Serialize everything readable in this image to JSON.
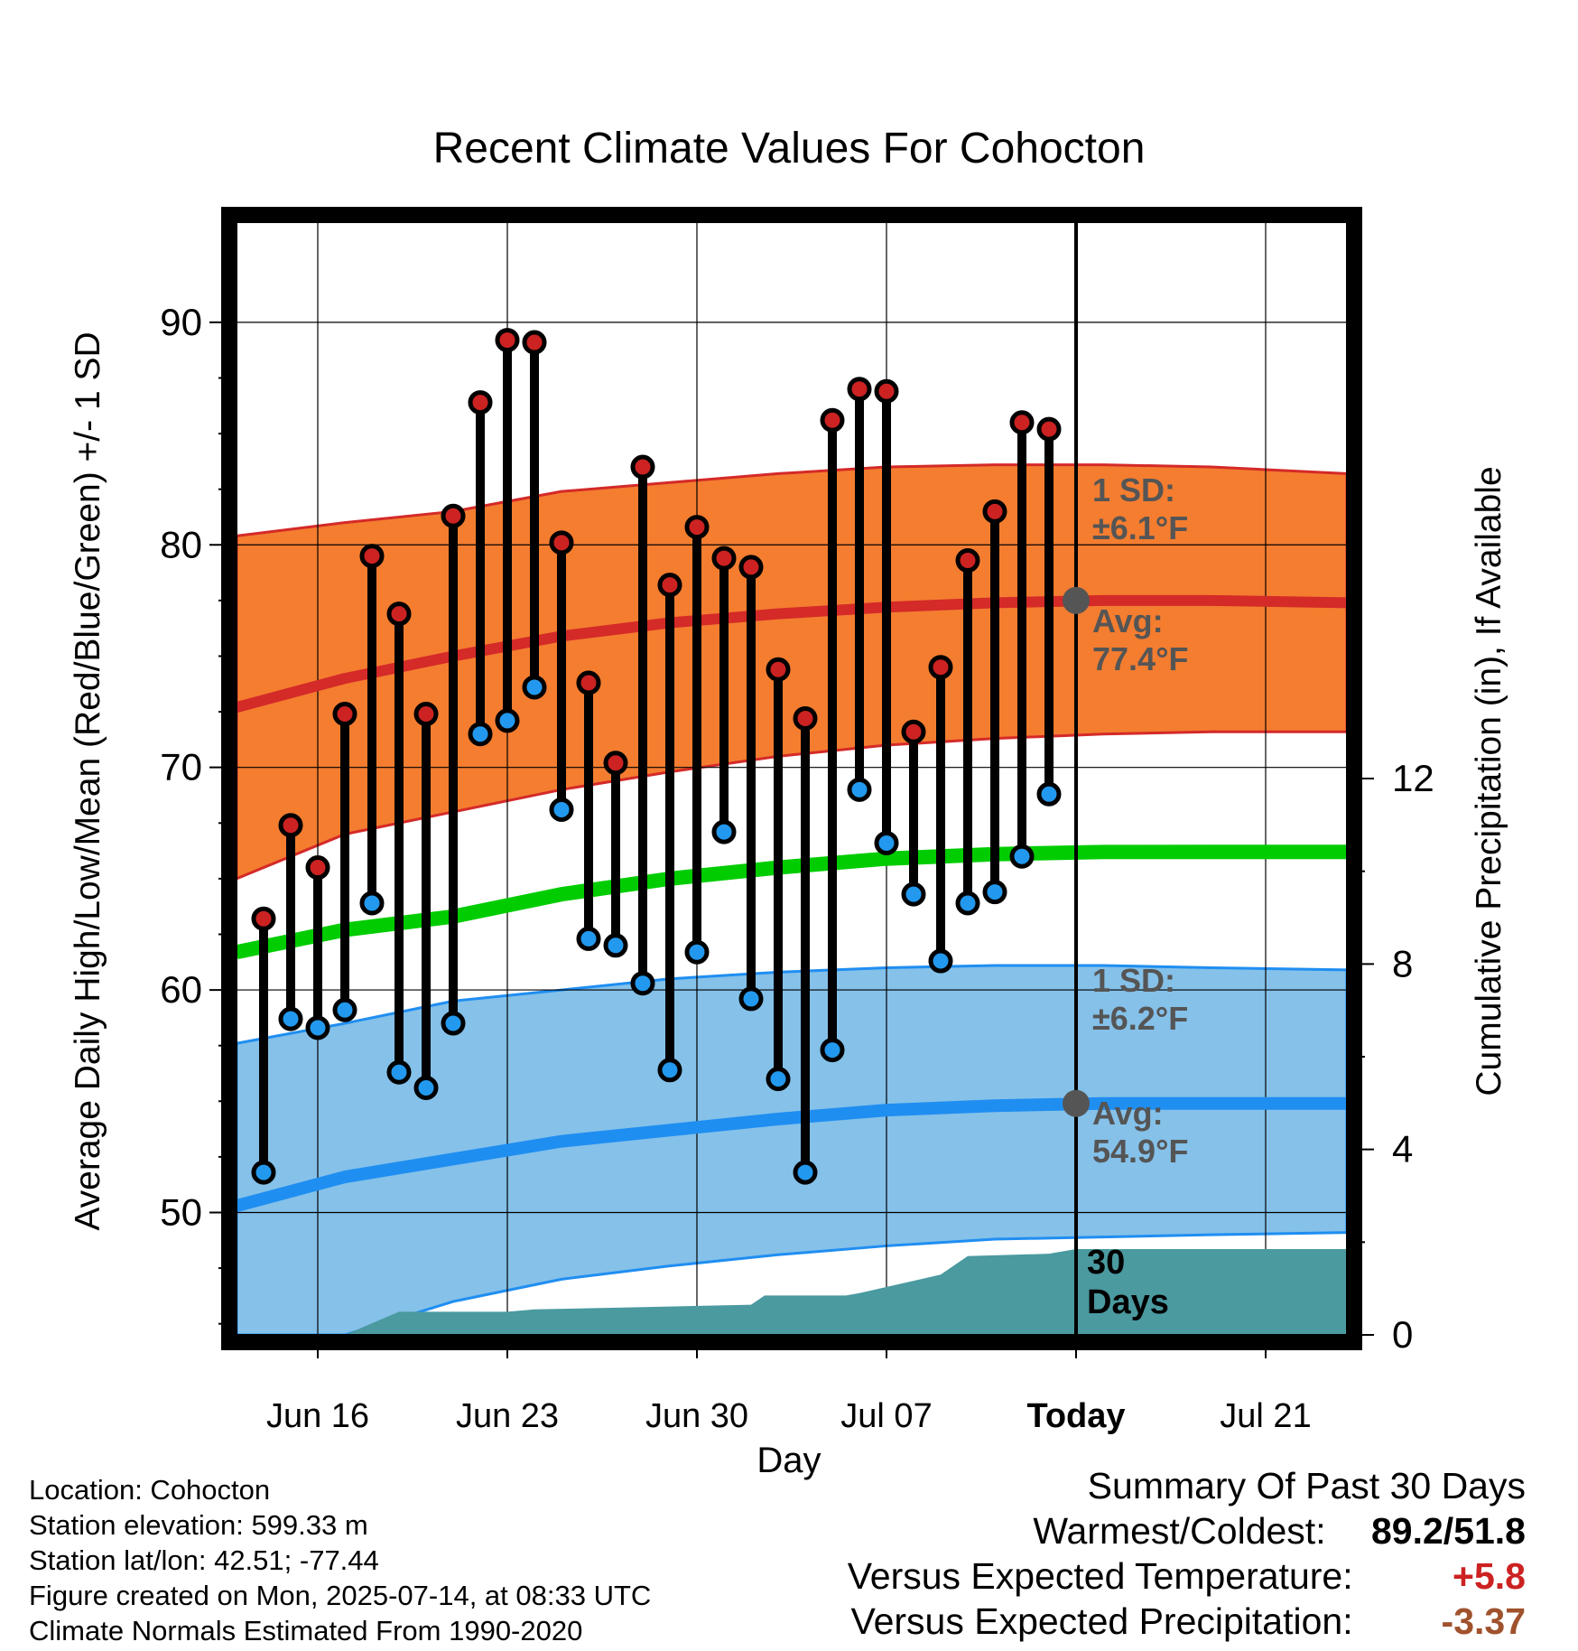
{
  "chart_data": {
    "type": "scatter",
    "title": "Recent Climate Values For Cohocton",
    "xlabel": "Day",
    "ylabel_left": "Average Daily High/Low/Mean (Red/Blue/Green) +/- 1 SD",
    "ylabel_right": "Cumulative Precipitation (in), If Available",
    "x_tick_labels": [
      "Jun 16",
      "Jun 23",
      "Jun 30",
      "Jul 07",
      "Today",
      "Jul 21"
    ],
    "x_tick_days": [
      3,
      10,
      17,
      24,
      31,
      38
    ],
    "xlim_days": [
      0,
      41
    ],
    "x_day_zero": "Jun 13",
    "ylim_left": [
      44.5,
      94.5
    ],
    "yticks_left": [
      50,
      60,
      70,
      80,
      90
    ],
    "ylim_right": [
      0,
      24
    ],
    "yticks_right": [
      0,
      4,
      8,
      12
    ],
    "grid": true,
    "today_day": 31,
    "today_label": "30 Days",
    "daily": {
      "days": [
        1,
        2,
        3,
        4,
        5,
        6,
        7,
        8,
        9,
        10,
        11,
        12,
        13,
        14,
        15,
        16,
        17,
        18,
        19,
        20,
        21,
        22,
        23,
        24,
        25,
        26,
        27,
        28,
        29,
        30
      ],
      "highs": [
        63.2,
        67.4,
        65.5,
        72.4,
        79.5,
        76.9,
        72.4,
        81.3,
        86.4,
        89.2,
        89.1,
        80.1,
        73.8,
        70.2,
        83.5,
        78.2,
        80.8,
        79.4,
        79.0,
        74.4,
        72.2,
        85.6,
        87.0,
        86.9,
        71.6,
        74.5,
        79.3,
        81.5,
        85.5,
        85.2
      ],
      "lows": [
        51.8,
        58.7,
        58.3,
        59.1,
        63.9,
        56.3,
        55.6,
        58.5,
        71.5,
        72.1,
        73.6,
        68.1,
        62.3,
        62.0,
        60.3,
        56.4,
        61.7,
        67.1,
        59.6,
        56.0,
        51.8,
        57.3,
        69.0,
        66.6,
        64.3,
        61.3,
        63.9,
        64.4,
        66.0,
        68.8
      ]
    },
    "normals": {
      "days": [
        0,
        4,
        8,
        12,
        16,
        20,
        24,
        28,
        32,
        36,
        41
      ],
      "high_avg": [
        72.7,
        74.0,
        75.0,
        75.9,
        76.5,
        76.9,
        77.2,
        77.4,
        77.5,
        77.5,
        77.4
      ],
      "high_sd_upper": [
        80.4,
        81.0,
        81.5,
        82.4,
        82.8,
        83.2,
        83.5,
        83.6,
        83.6,
        83.5,
        83.2
      ],
      "high_sd_lower": [
        65.0,
        67.0,
        68.0,
        69.0,
        69.8,
        70.5,
        71.0,
        71.3,
        71.5,
        71.6,
        71.6
      ],
      "mean_avg": [
        61.7,
        62.7,
        63.3,
        64.3,
        65.0,
        65.5,
        65.9,
        66.1,
        66.2,
        66.2,
        66.2
      ],
      "low_avg": [
        50.3,
        51.6,
        52.4,
        53.2,
        53.7,
        54.2,
        54.6,
        54.8,
        54.9,
        54.9,
        54.9
      ],
      "low_sd_upper": [
        57.6,
        58.5,
        59.5,
        60.0,
        60.5,
        60.8,
        61.0,
        61.1,
        61.1,
        61.0,
        60.9
      ],
      "low_sd_lower": [
        42.0,
        44.0,
        46.0,
        47.0,
        47.6,
        48.1,
        48.5,
        48.8,
        48.9,
        49.0,
        49.1
      ]
    },
    "precip_cumulative": {
      "days": [
        0,
        4,
        6,
        10,
        11,
        15,
        19,
        19.5,
        22.5,
        23,
        26,
        27,
        30,
        31,
        41
      ],
      "values": [
        0,
        0,
        0.5,
        0.5,
        0.55,
        0.6,
        0.65,
        0.85,
        0.85,
        0.9,
        1.3,
        1.7,
        1.75,
        1.85,
        1.85
      ]
    },
    "annotations": {
      "high_sd": "1 SD:",
      "high_sd_value": "±6.1°F",
      "high_avg": "Avg:",
      "high_avg_value": "77.4°F",
      "low_sd": "1 SD:",
      "low_sd_value": "±6.2°F",
      "low_avg": "Avg:",
      "low_avg_value": "54.9°F"
    },
    "colors": {
      "high_band": "#f47d30",
      "high_line": "#d42a28",
      "low_band": "#85c1e9",
      "low_line": "#1f8ef1",
      "mean_line": "#00cc00",
      "precip": "#4a9aa0",
      "high_dot": "#cc2222",
      "low_dot": "#2299ee",
      "annotation": "#555555"
    }
  },
  "info": {
    "location": "Location: Cohocton",
    "elevation": "Station elevation: 599.33 m",
    "latlon": "Station lat/lon: 42.51; -77.44",
    "created": "Figure created on Mon, 2025-07-14, at 08:33 UTC",
    "normals": "Climate Normals Estimated From 1990-2020"
  },
  "summary": {
    "title": "Summary Of Past 30 Days",
    "warm_cold_label": "Warmest/Coldest:",
    "warm_cold_value": "89.2/51.8",
    "temp_label": "Versus Expected Temperature:",
    "temp_value": "+5.8",
    "temp_color": "#cc2222",
    "precip_label": "Versus Expected Precipitation:",
    "precip_value": "-3.37",
    "precip_color": "#a0522d"
  }
}
